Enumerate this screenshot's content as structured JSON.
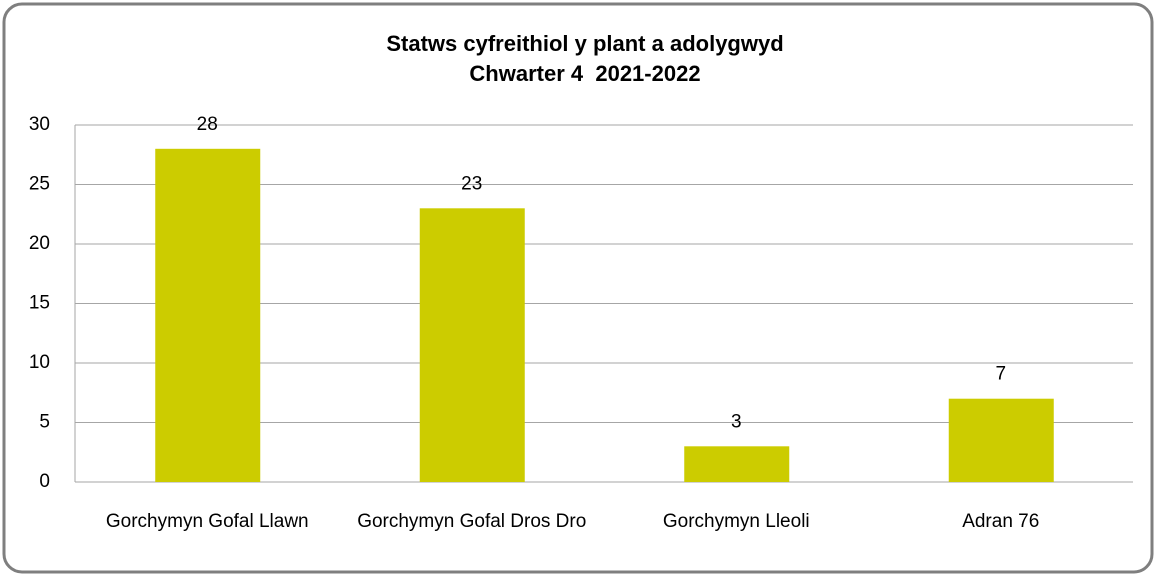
{
  "chart_data": {
    "type": "bar",
    "title": "Statws cyfreithiol y plant a adolygwyd",
    "subtitle": "Chwarter 4  2021-2022",
    "categories": [
      "Gorchymyn Gofal Llawn",
      "Gorchymyn Gofal Dros Dro",
      "Gorchymyn Lleoli",
      "Adran 76"
    ],
    "values": [
      28,
      23,
      3,
      7
    ],
    "color": "#cccc00",
    "ylim": [
      0,
      30
    ],
    "yticks": [
      0,
      5,
      10,
      15,
      20,
      25,
      30
    ],
    "grid": true
  }
}
